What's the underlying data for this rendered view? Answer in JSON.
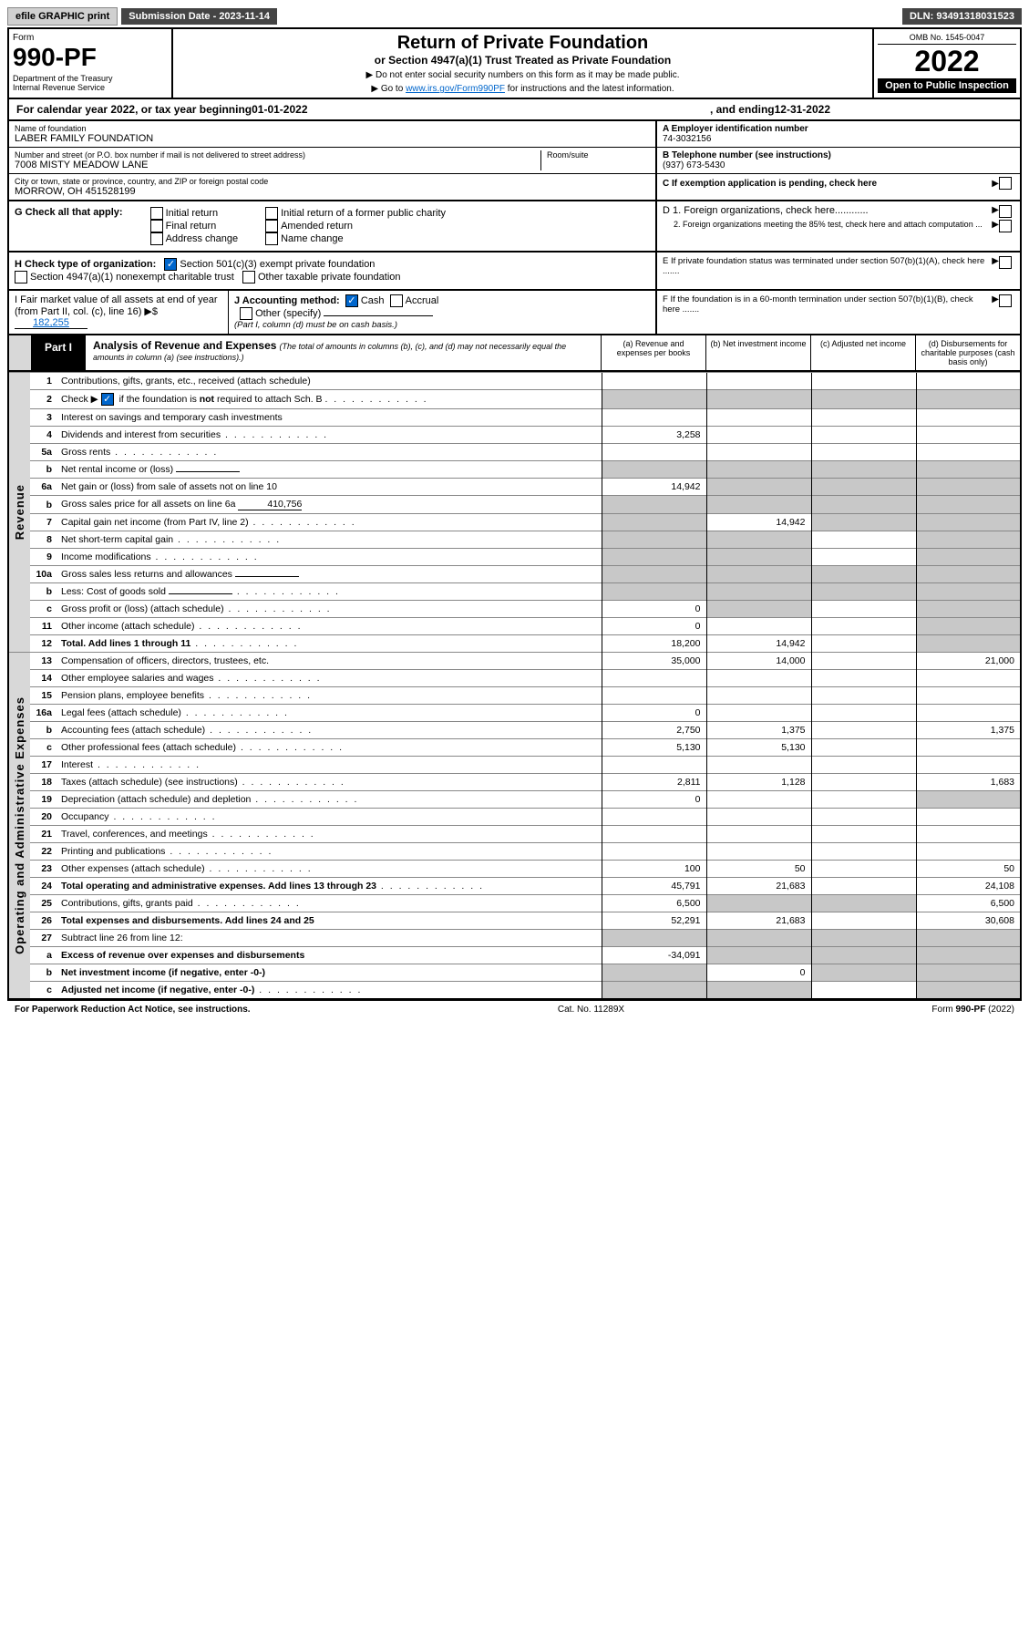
{
  "topbar": {
    "efile": "efile GRAPHIC print",
    "submission": "Submission Date - 2023-11-14",
    "dln": "DLN: 93491318031523"
  },
  "header": {
    "form_label": "Form",
    "form_no": "990-PF",
    "dept": "Department of the Treasury\nInternal Revenue Service",
    "title": "Return of Private Foundation",
    "subtitle": "or Section 4947(a)(1) Trust Treated as Private Foundation",
    "note1": "▶ Do not enter social security numbers on this form as it may be made public.",
    "note2_pre": "▶ Go to ",
    "note2_link": "www.irs.gov/Form990PF",
    "note2_post": " for instructions and the latest information.",
    "omb": "OMB No. 1545-0047",
    "year": "2022",
    "open": "Open to Public Inspection"
  },
  "calyear": {
    "pre": "For calendar year 2022, or tax year beginning ",
    "begin": "01-01-2022",
    "mid": ", and ending ",
    "end": "12-31-2022"
  },
  "nameblock": {
    "name_label": "Name of foundation",
    "name": "LABER FAMILY FOUNDATION",
    "addr_label": "Number and street (or P.O. box number if mail is not delivered to street address)",
    "addr": "7008 MISTY MEADOW LANE",
    "room_label": "Room/suite",
    "city_label": "City or town, state or province, country, and ZIP or foreign postal code",
    "city": "MORROW, OH  451528199"
  },
  "a": {
    "label": "A Employer identification number",
    "val": "74-3032156"
  },
  "b": {
    "label": "B Telephone number (see instructions)",
    "val": "(937) 673-5430"
  },
  "c": {
    "label": "C If exemption application is pending, check here"
  },
  "d": {
    "d1": "D 1. Foreign organizations, check here............",
    "d2": "2. Foreign organizations meeting the 85% test, check here and attach computation ..."
  },
  "e": {
    "label": "E  If private foundation status was terminated under section 507(b)(1)(A), check here ......."
  },
  "f": {
    "label": "F  If the foundation is in a 60-month termination under section 507(b)(1)(B), check here ......."
  },
  "g": {
    "label": "G Check all that apply:",
    "opts": [
      "Initial return",
      "Final return",
      "Address change",
      "Initial return of a former public charity",
      "Amended return",
      "Name change"
    ]
  },
  "h": {
    "label": "H Check type of organization:",
    "opt1": "Section 501(c)(3) exempt private foundation",
    "opt2": "Section 4947(a)(1) nonexempt charitable trust",
    "opt3": "Other taxable private foundation"
  },
  "i": {
    "label": "I Fair market value of all assets at end of year (from Part II, col. (c), line 16) ▶$",
    "val": "182,255"
  },
  "j": {
    "label": "J Accounting method:",
    "cash": "Cash",
    "accrual": "Accrual",
    "other": "Other (specify)",
    "note": "(Part I, column (d) must be on cash basis.)"
  },
  "part1": {
    "tag": "Part I",
    "title": "Analysis of Revenue and Expenses",
    "sub": "(The total of amounts in columns (b), (c), and (d) may not necessarily equal the amounts in column (a) (see instructions).)",
    "cols": {
      "a": "(a)  Revenue and expenses per books",
      "b": "(b)  Net investment income",
      "c": "(c)  Adjusted net income",
      "d": "(d)  Disbursements for charitable purposes (cash basis only)"
    }
  },
  "vlabels": {
    "rev": "Revenue",
    "oae": "Operating and Administrative Expenses"
  },
  "rows": [
    {
      "ln": "1",
      "desc": "Contributions, gifts, grants, etc., received (attach schedule)",
      "sa": true,
      "sb": false,
      "sc": false,
      "sd": true
    },
    {
      "ln": "2",
      "desc": "Check ▶ ☑ if the foundation is not required to attach Sch. B",
      "dots": true,
      "sa": true,
      "sb": true,
      "sc": true,
      "sd": true,
      "shade_b": true,
      "shade_c": true,
      "shade_d": true,
      "shade_a": true
    },
    {
      "ln": "3",
      "desc": "Interest on savings and temporary cash investments"
    },
    {
      "ln": "4",
      "desc": "Dividends and interest from securities",
      "dots": true,
      "a": "3,258",
      "sd": true
    },
    {
      "ln": "5a",
      "desc": "Gross rents",
      "dots": true,
      "sd": true
    },
    {
      "ln": "b",
      "desc": "Net rental income or (loss)",
      "inline": "",
      "sa": true,
      "sb": true,
      "sc": true,
      "sd": true,
      "shade_all": true
    },
    {
      "ln": "6a",
      "desc": "Net gain or (loss) from sale of assets not on line 10",
      "a": "14,942",
      "sb": true,
      "sc": true,
      "sd": true,
      "shade_b": true,
      "shade_c": true,
      "shade_d": true
    },
    {
      "ln": "b",
      "desc": "Gross sales price for all assets on line 6a",
      "inline": "410,756",
      "sa": true,
      "sb": true,
      "sc": true,
      "sd": true,
      "shade_all": true
    },
    {
      "ln": "7",
      "desc": "Capital gain net income (from Part IV, line 2)",
      "dots": true,
      "b": "14,942",
      "sa": true,
      "sc": true,
      "sd": true,
      "shade_a": true,
      "shade_c": true,
      "shade_d": true
    },
    {
      "ln": "8",
      "desc": "Net short-term capital gain",
      "dots": true,
      "sa": true,
      "sb": true,
      "sd": true,
      "shade_a": true,
      "shade_b": true,
      "shade_d": true
    },
    {
      "ln": "9",
      "desc": "Income modifications",
      "dots": true,
      "sa": true,
      "sb": true,
      "sd": true,
      "shade_a": true,
      "shade_b": true,
      "shade_d": true
    },
    {
      "ln": "10a",
      "desc": "Gross sales less returns and allowances",
      "inline": "",
      "sa": true,
      "sb": true,
      "sc": true,
      "sd": true,
      "shade_all": true
    },
    {
      "ln": "b",
      "desc": "Less: Cost of goods sold",
      "dots": true,
      "inline": "",
      "sa": true,
      "sb": true,
      "sc": true,
      "sd": true,
      "shade_all": true
    },
    {
      "ln": "c",
      "desc": "Gross profit or (loss) (attach schedule)",
      "dots": true,
      "a": "0",
      "sb": true,
      "sd": true,
      "shade_b": true,
      "shade_d": true
    },
    {
      "ln": "11",
      "desc": "Other income (attach schedule)",
      "dots": true,
      "a": "0",
      "sd": true,
      "shade_d": true
    },
    {
      "ln": "12",
      "desc": "Total. Add lines 1 through 11",
      "dots": true,
      "bold": true,
      "a": "18,200",
      "b": "14,942",
      "sd": true,
      "shade_d": true
    },
    {
      "ln": "13",
      "desc": "Compensation of officers, directors, trustees, etc.",
      "a": "35,000",
      "b": "14,000",
      "d": "21,000"
    },
    {
      "ln": "14",
      "desc": "Other employee salaries and wages",
      "dots": true
    },
    {
      "ln": "15",
      "desc": "Pension plans, employee benefits",
      "dots": true
    },
    {
      "ln": "16a",
      "desc": "Legal fees (attach schedule)",
      "dots": true,
      "a": "0"
    },
    {
      "ln": "b",
      "desc": "Accounting fees (attach schedule)",
      "dots": true,
      "a": "2,750",
      "b": "1,375",
      "d": "1,375"
    },
    {
      "ln": "c",
      "desc": "Other professional fees (attach schedule)",
      "dots": true,
      "a": "5,130",
      "b": "5,130"
    },
    {
      "ln": "17",
      "desc": "Interest",
      "dots": true
    },
    {
      "ln": "18",
      "desc": "Taxes (attach schedule) (see instructions)",
      "dots": true,
      "a": "2,811",
      "b": "1,128",
      "d": "1,683"
    },
    {
      "ln": "19",
      "desc": "Depreciation (attach schedule) and depletion",
      "dots": true,
      "a": "0",
      "sd": true,
      "shade_d": true
    },
    {
      "ln": "20",
      "desc": "Occupancy",
      "dots": true
    },
    {
      "ln": "21",
      "desc": "Travel, conferences, and meetings",
      "dots": true
    },
    {
      "ln": "22",
      "desc": "Printing and publications",
      "dots": true
    },
    {
      "ln": "23",
      "desc": "Other expenses (attach schedule)",
      "dots": true,
      "a": "100",
      "b": "50",
      "d": "50"
    },
    {
      "ln": "24",
      "desc": "Total operating and administrative expenses. Add lines 13 through 23",
      "dots": true,
      "bold": true,
      "a": "45,791",
      "b": "21,683",
      "d": "24,108"
    },
    {
      "ln": "25",
      "desc": "Contributions, gifts, grants paid",
      "dots": true,
      "a": "6,500",
      "d": "6,500",
      "sb": true,
      "sc": true,
      "shade_b": true,
      "shade_c": true
    },
    {
      "ln": "26",
      "desc": "Total expenses and disbursements. Add lines 24 and 25",
      "bold": true,
      "a": "52,291",
      "b": "21,683",
      "d": "30,608"
    },
    {
      "ln": "27",
      "desc": "Subtract line 26 from line 12:",
      "sa": true,
      "sb": true,
      "sc": true,
      "sd": true,
      "shade_all": true
    },
    {
      "ln": "a",
      "desc": "Excess of revenue over expenses and disbursements",
      "bold": true,
      "a": "-34,091",
      "sb": true,
      "sc": true,
      "sd": true,
      "shade_b": true,
      "shade_c": true,
      "shade_d": true
    },
    {
      "ln": "b",
      "desc": "Net investment income (if negative, enter -0-)",
      "bold": true,
      "b": "0",
      "sa": true,
      "sc": true,
      "sd": true,
      "shade_a": true,
      "shade_c": true,
      "shade_d": true
    },
    {
      "ln": "c",
      "desc": "Adjusted net income (if negative, enter -0-)",
      "dots": true,
      "bold": true,
      "sa": true,
      "sb": true,
      "sd": true,
      "shade_a": true,
      "shade_b": true,
      "shade_d": true
    }
  ],
  "footer": {
    "left": "For Paperwork Reduction Act Notice, see instructions.",
    "mid": "Cat. No. 11289X",
    "right": "Form 990-PF (2022)"
  }
}
